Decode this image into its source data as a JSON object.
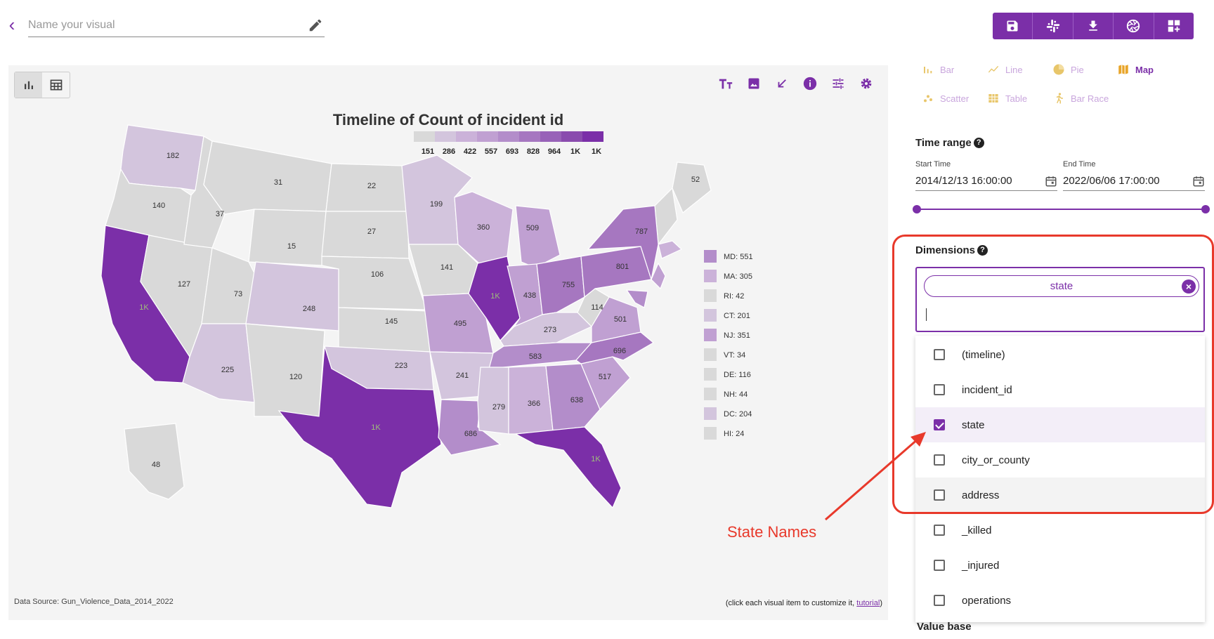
{
  "header": {
    "name_placeholder": "Name your visual",
    "toolbar": [
      "save-icon",
      "slack-icon",
      "download-icon",
      "aperture-icon",
      "dashboard-add-icon"
    ]
  },
  "panel": {
    "title": "Timeline of Count of incident id",
    "data_source": "Data Source: Gun_Violence_Data_2014_2022",
    "hint_prefix": "(click each visual item to customize it, ",
    "hint_link": "tutorial",
    "hint_suffix": ")"
  },
  "chart_data": {
    "type": "choropleth-map",
    "title": "Timeline of Count of incident id",
    "color_scale": {
      "tick_labels": [
        "151",
        "286",
        "422",
        "557",
        "693",
        "828",
        "964",
        "1K",
        "1K"
      ],
      "colors": [
        "#d9d9d9",
        "#d3c5dd",
        "#cbb2d9",
        "#c0a0d2",
        "#b38dca",
        "#a677c0",
        "#9862b8",
        "#8a4cae",
        "#7b2fa8"
      ]
    },
    "states": [
      {
        "abbr": "WA",
        "value": "182"
      },
      {
        "abbr": "OR",
        "value": "140"
      },
      {
        "abbr": "CA",
        "value": "1K"
      },
      {
        "abbr": "NV",
        "value": "127"
      },
      {
        "abbr": "ID",
        "value": "37"
      },
      {
        "abbr": "MT",
        "value": "31"
      },
      {
        "abbr": "WY",
        "value": "15"
      },
      {
        "abbr": "UT",
        "value": "73"
      },
      {
        "abbr": "AZ",
        "value": "225"
      },
      {
        "abbr": "CO",
        "value": "248"
      },
      {
        "abbr": "NM",
        "value": "120"
      },
      {
        "abbr": "ND",
        "value": "22"
      },
      {
        "abbr": "SD",
        "value": "27"
      },
      {
        "abbr": "NE",
        "value": "106"
      },
      {
        "abbr": "KS",
        "value": "145"
      },
      {
        "abbr": "OK",
        "value": "223"
      },
      {
        "abbr": "TX",
        "value": "1K"
      },
      {
        "abbr": "MN",
        "value": "199"
      },
      {
        "abbr": "IA",
        "value": "141"
      },
      {
        "abbr": "MO",
        "value": "495"
      },
      {
        "abbr": "AR",
        "value": "241"
      },
      {
        "abbr": "LA",
        "value": "686"
      },
      {
        "abbr": "WI",
        "value": "360"
      },
      {
        "abbr": "IL",
        "value": "1K"
      },
      {
        "abbr": "MI",
        "value": "509"
      },
      {
        "abbr": "IN",
        "value": "438"
      },
      {
        "abbr": "OH",
        "value": "755"
      },
      {
        "abbr": "KY",
        "value": "273"
      },
      {
        "abbr": "TN",
        "value": "583"
      },
      {
        "abbr": "MS",
        "value": "279"
      },
      {
        "abbr": "AL",
        "value": "366"
      },
      {
        "abbr": "GA",
        "value": "638"
      },
      {
        "abbr": "FL",
        "value": "1K"
      },
      {
        "abbr": "SC",
        "value": "517"
      },
      {
        "abbr": "NC",
        "value": "696"
      },
      {
        "abbr": "VA",
        "value": "501"
      },
      {
        "abbr": "WV",
        "value": "114"
      },
      {
        "abbr": "PA",
        "value": "801"
      },
      {
        "abbr": "NY",
        "value": "787"
      },
      {
        "abbr": "ME",
        "value": "52"
      },
      {
        "abbr": "AK",
        "value": "48"
      }
    ],
    "small_states": [
      {
        "label": "MD: 551",
        "color": "#b38dca"
      },
      {
        "label": "MA: 305",
        "color": "#cbb2d9"
      },
      {
        "label": "RI: 42",
        "color": "#d9d9d9"
      },
      {
        "label": "CT: 201",
        "color": "#d3c5dd"
      },
      {
        "label": "NJ: 351",
        "color": "#c0a0d2"
      },
      {
        "label": "VT: 34",
        "color": "#d9d9d9"
      },
      {
        "label": "DE: 116",
        "color": "#d9d9d9"
      },
      {
        "label": "NH: 44",
        "color": "#d9d9d9"
      },
      {
        "label": "DC: 204",
        "color": "#d3c5dd"
      },
      {
        "label": "HI: 24",
        "color": "#d9d9d9"
      }
    ]
  },
  "chart_types": [
    {
      "label": "Bar",
      "icon": "bar-chart-icon",
      "active": false
    },
    {
      "label": "Line",
      "icon": "line-chart-icon",
      "active": false
    },
    {
      "label": "Pie",
      "icon": "pie-chart-icon",
      "active": false
    },
    {
      "label": "Map",
      "icon": "map-icon",
      "active": true
    },
    {
      "label": "Scatter",
      "icon": "scatter-icon",
      "active": false
    },
    {
      "label": "Table",
      "icon": "table-icon",
      "active": false
    },
    {
      "label": "Bar Race",
      "icon": "runner-icon",
      "active": false
    }
  ],
  "time_range": {
    "title": "Time range",
    "start_label": "Start Time",
    "start_value": "2014/12/13 16:00:00",
    "end_label": "End Time",
    "end_value": "2022/06/06 17:00:00"
  },
  "dimensions": {
    "title": "Dimensions",
    "chip": "state",
    "options": [
      {
        "label": "(timeline)",
        "checked": false
      },
      {
        "label": "incident_id",
        "checked": false
      },
      {
        "label": "state",
        "checked": true
      },
      {
        "label": "city_or_county",
        "checked": false
      },
      {
        "label": "address",
        "checked": false
      },
      {
        "label": "_killed",
        "checked": false
      },
      {
        "label": "_injured",
        "checked": false
      },
      {
        "label": "operations",
        "checked": false
      }
    ]
  },
  "value_base_title": "Value base",
  "annotation": {
    "text": "State Names"
  }
}
